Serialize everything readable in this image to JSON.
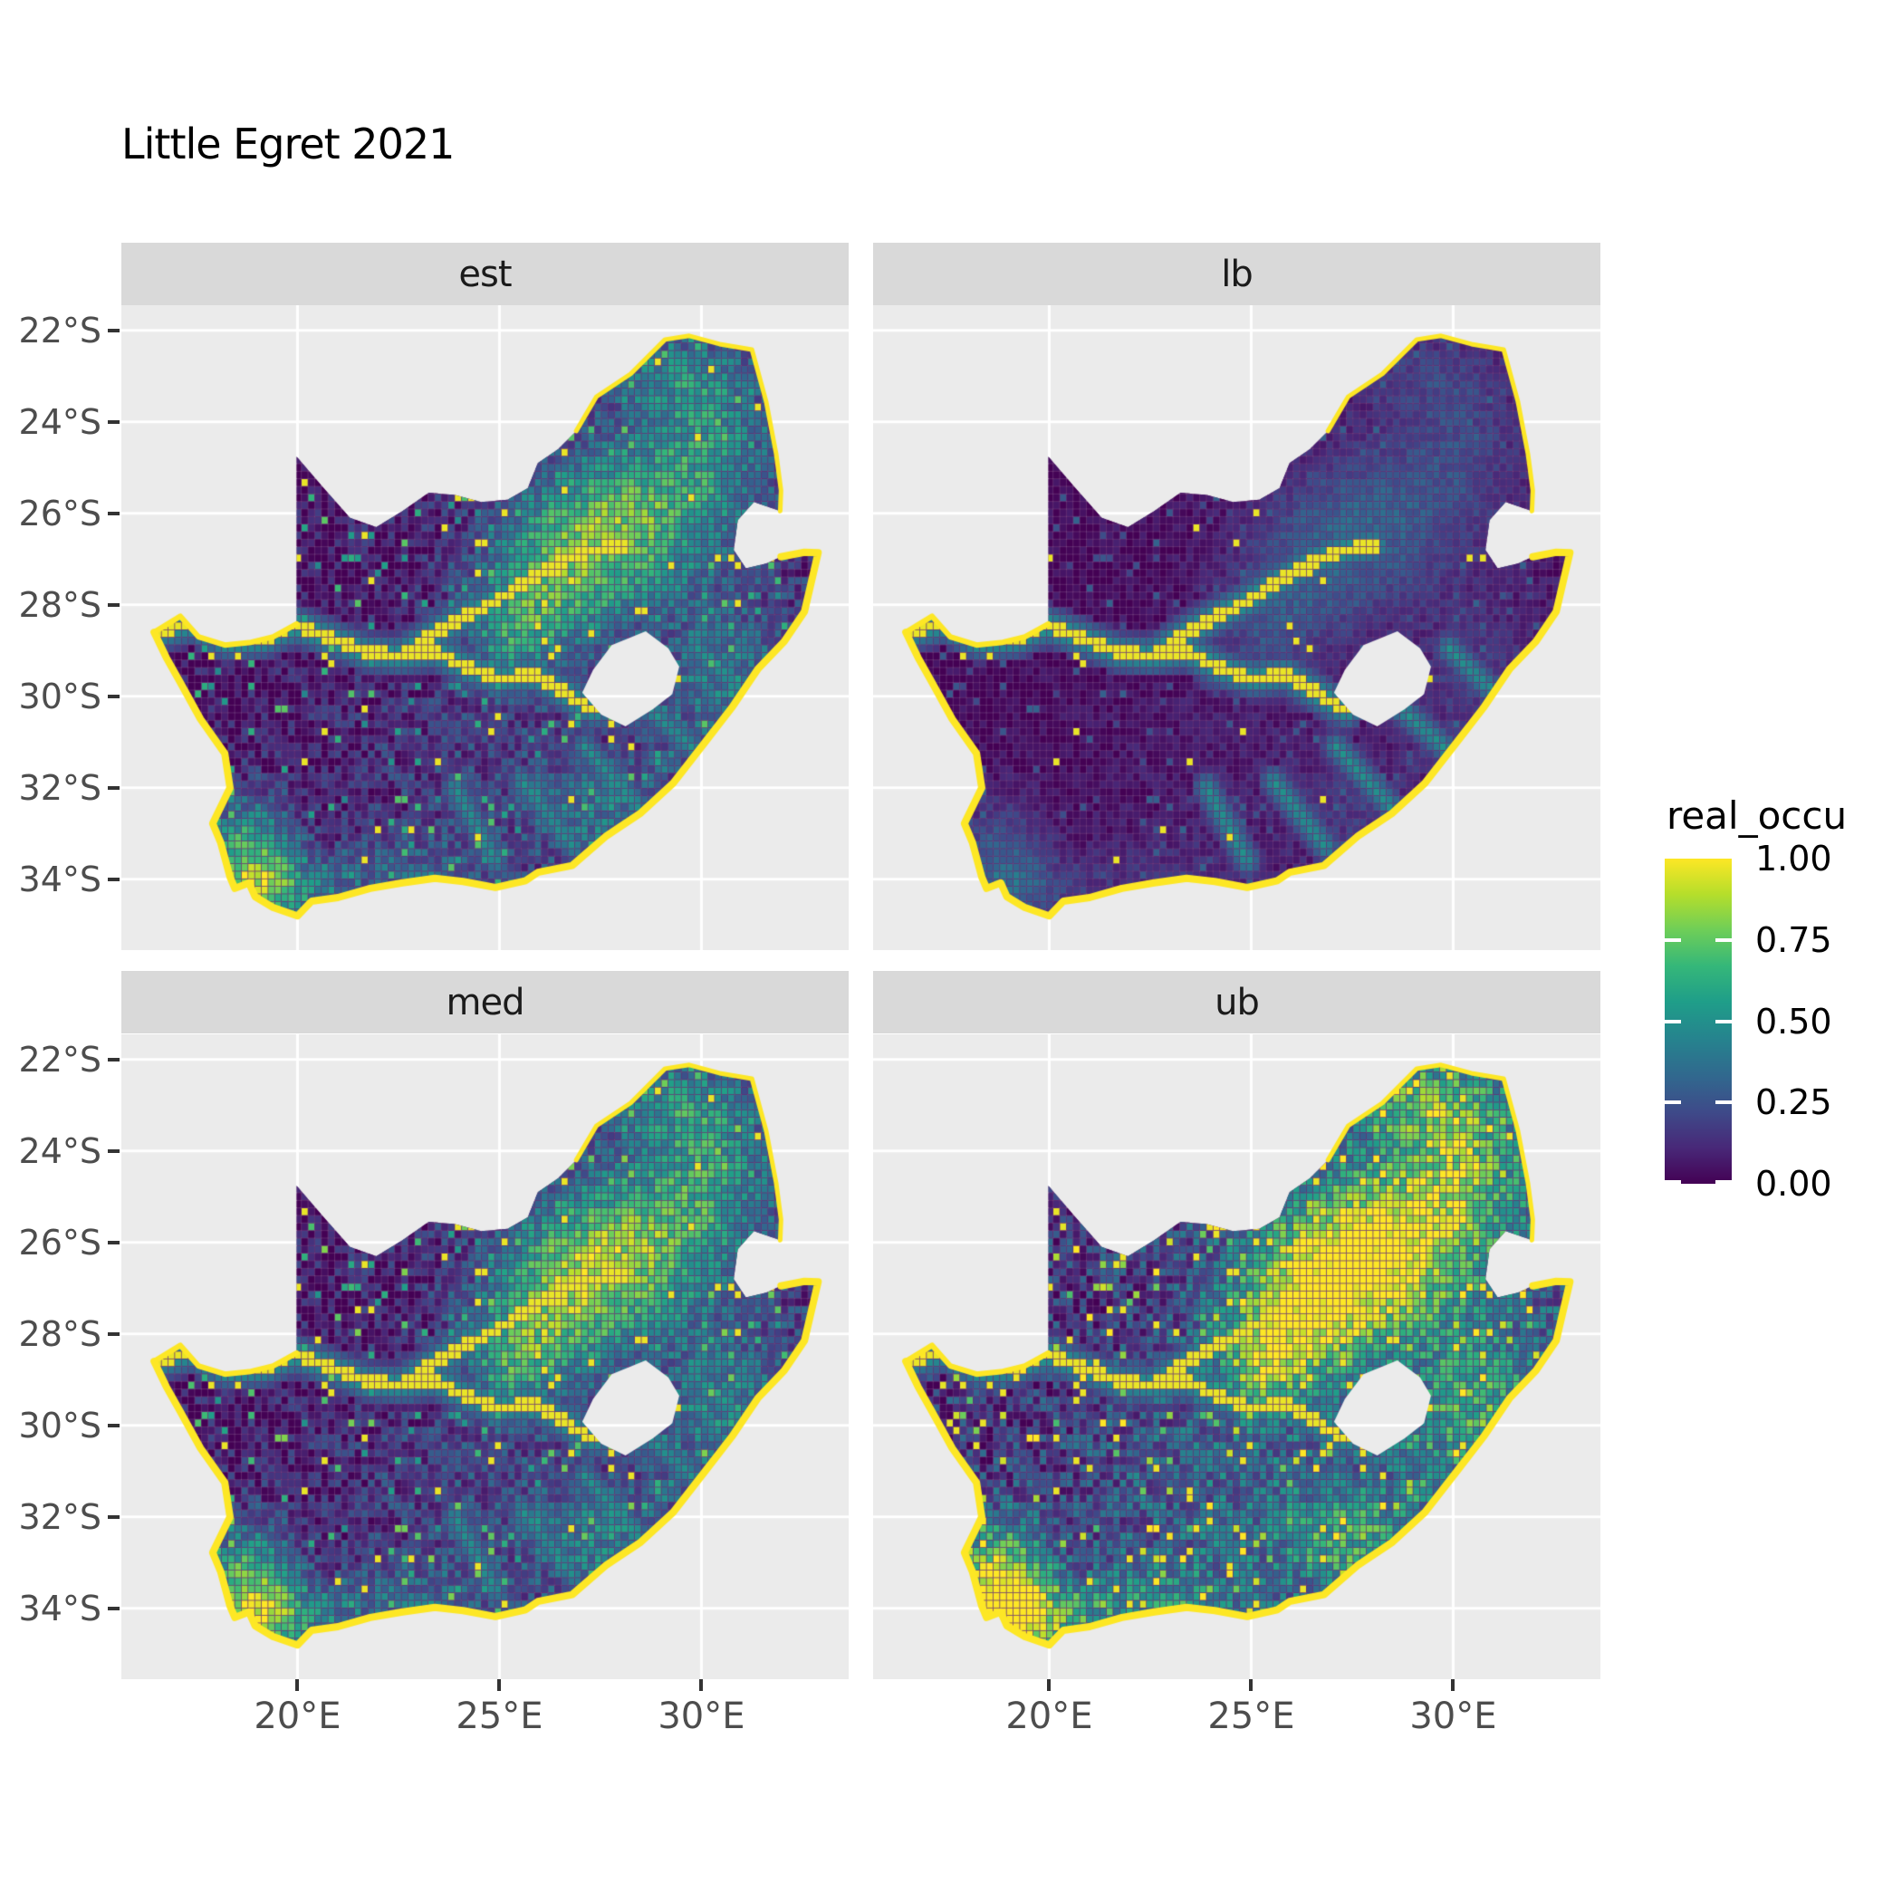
{
  "title": "Little Egret 2021",
  "facets": [
    {
      "id": "est",
      "label": "est",
      "k": 1.0,
      "c": 0.0,
      "salt": 0.986
    },
    {
      "id": "lb",
      "label": "lb",
      "k": 0.42,
      "c": 0.0,
      "salt": 0.993
    },
    {
      "id": "med",
      "label": "med",
      "k": 1.06,
      "c": 0.02,
      "salt": 0.985
    },
    {
      "id": "ub",
      "label": "ub",
      "k": 1.32,
      "c": 0.1,
      "salt": 0.978
    }
  ],
  "axes": {
    "x_tick_labels": [
      "20°E",
      "25°E",
      "30°E"
    ],
    "x_tick_lons": [
      20,
      25,
      30
    ],
    "y_tick_labels": [
      "22°S",
      "24°S",
      "26°S",
      "28°S",
      "30°S",
      "32°S",
      "34°S"
    ],
    "y_tick_lats": [
      22,
      24,
      26,
      28,
      30,
      32,
      34
    ]
  },
  "legend": {
    "title": "real_occu",
    "labels": [
      "1.00",
      "0.75",
      "0.50",
      "0.25",
      "0.00"
    ],
    "values": [
      1.0,
      0.75,
      0.5,
      0.25,
      0.0
    ],
    "tick_values": [
      0.75,
      0.5,
      0.25,
      0.0
    ]
  },
  "colors": {
    "panel_bg": "#ebebeb",
    "strip_bg": "#d9d9d9",
    "grid": "#ffffff",
    "tick_text": "#4d4d4d",
    "axis_tick": "#333333",
    "title_text": "#000000",
    "map_low": "#440154",
    "map_high": "#fde725",
    "viridis": [
      [
        0.0,
        "#440154"
      ],
      [
        0.11,
        "#482878"
      ],
      [
        0.22,
        "#3e4a89"
      ],
      [
        0.33,
        "#31688e"
      ],
      [
        0.44,
        "#26828e"
      ],
      [
        0.56,
        "#1f9e89"
      ],
      [
        0.67,
        "#35b779"
      ],
      [
        0.78,
        "#6ece58"
      ],
      [
        0.89,
        "#b5de2b"
      ],
      [
        1.0,
        "#fde725"
      ]
    ]
  },
  "chart_data": {
    "type": "heatmap",
    "subtype": "faceted-raster-map",
    "region": "South Africa",
    "variable": "real_occu",
    "facet_panels": [
      "est",
      "lb",
      "med",
      "ub"
    ],
    "value_domain": [
      0.0,
      1.0
    ],
    "legend_breaks": [
      0.0,
      0.25,
      0.5,
      0.75,
      1.0
    ],
    "lon_range": [
      15.64,
      33.64
    ],
    "lat_range_south": [
      21.45,
      35.55
    ],
    "cell_deg": 0.165,
    "outline": [
      [
        16.45,
        28.6
      ],
      [
        17.1,
        28.25
      ],
      [
        17.55,
        28.7
      ],
      [
        18.2,
        28.88
      ],
      [
        18.85,
        28.82
      ],
      [
        19.4,
        28.7
      ],
      [
        19.98,
        28.42
      ],
      [
        19.98,
        26.6
      ],
      [
        19.98,
        24.76
      ],
      [
        20.65,
        25.45
      ],
      [
        21.3,
        26.1
      ],
      [
        21.95,
        26.3
      ],
      [
        22.6,
        25.95
      ],
      [
        23.25,
        25.55
      ],
      [
        23.9,
        25.6
      ],
      [
        24.55,
        25.75
      ],
      [
        25.2,
        25.7
      ],
      [
        25.7,
        25.45
      ],
      [
        25.95,
        24.9
      ],
      [
        26.45,
        24.6
      ],
      [
        26.9,
        24.2
      ],
      [
        27.4,
        23.45
      ],
      [
        28.25,
        22.95
      ],
      [
        29.1,
        22.2
      ],
      [
        29.7,
        22.12
      ],
      [
        30.45,
        22.3
      ],
      [
        31.25,
        22.42
      ],
      [
        31.6,
        23.55
      ],
      [
        31.85,
        24.7
      ],
      [
        31.97,
        25.5
      ],
      [
        31.95,
        25.95
      ],
      [
        31.3,
        25.75
      ],
      [
        30.9,
        26.15
      ],
      [
        30.8,
        26.8
      ],
      [
        31.1,
        27.2
      ],
      [
        31.6,
        27.1
      ],
      [
        31.97,
        26.95
      ],
      [
        32.55,
        26.85
      ],
      [
        32.89,
        26.86
      ],
      [
        32.55,
        28.15
      ],
      [
        32.05,
        28.8
      ],
      [
        31.4,
        29.4
      ],
      [
        30.75,
        30.25
      ],
      [
        30.05,
        31.05
      ],
      [
        29.3,
        31.9
      ],
      [
        28.5,
        32.55
      ],
      [
        27.65,
        33.05
      ],
      [
        26.8,
        33.7
      ],
      [
        25.95,
        33.85
      ],
      [
        25.65,
        34.03
      ],
      [
        24.9,
        34.18
      ],
      [
        24.1,
        34.05
      ],
      [
        23.4,
        33.98
      ],
      [
        22.6,
        34.08
      ],
      [
        21.8,
        34.2
      ],
      [
        21.0,
        34.4
      ],
      [
        20.35,
        34.48
      ],
      [
        20.0,
        34.8
      ],
      [
        19.4,
        34.62
      ],
      [
        18.95,
        34.38
      ],
      [
        18.8,
        34.08
      ],
      [
        18.45,
        34.2
      ],
      [
        18.33,
        33.95
      ],
      [
        18.1,
        33.2
      ],
      [
        17.9,
        32.78
      ],
      [
        18.33,
        32.0
      ],
      [
        18.2,
        31.25
      ],
      [
        17.6,
        30.5
      ],
      [
        17.1,
        29.7
      ],
      [
        16.75,
        29.15
      ]
    ],
    "yellow_border_segments": [
      [
        0,
        6
      ],
      [
        20,
        30
      ],
      [
        36,
        70
      ]
    ],
    "yellow_border_widths": [
      6,
      5,
      8
    ],
    "lesotho_hole": [
      [
        28.62,
        28.58
      ],
      [
        29.18,
        28.95
      ],
      [
        29.45,
        29.35
      ],
      [
        29.28,
        29.95
      ],
      [
        28.8,
        30.28
      ],
      [
        28.12,
        30.66
      ],
      [
        27.52,
        30.4
      ],
      [
        27.05,
        29.92
      ],
      [
        27.32,
        29.42
      ],
      [
        27.78,
        28.88
      ]
    ],
    "rivers": [
      [
        [
          16.55,
          28.6
        ],
        [
          17.4,
          28.4
        ],
        [
          18.25,
          28.8
        ],
        [
          19.15,
          28.75
        ],
        [
          19.95,
          28.45
        ],
        [
          20.85,
          28.75
        ],
        [
          21.7,
          29.05
        ],
        [
          22.55,
          29.12
        ],
        [
          23.4,
          29.0
        ],
        [
          24.25,
          29.4
        ],
        [
          25.05,
          29.62
        ],
        [
          25.85,
          29.52
        ],
        [
          26.65,
          29.95
        ],
        [
          27.35,
          30.3
        ]
      ],
      [
        [
          22.55,
          29.12
        ],
        [
          23.35,
          28.65
        ],
        [
          24.15,
          28.25
        ],
        [
          24.95,
          27.9
        ],
        [
          25.75,
          27.45
        ],
        [
          26.55,
          27.05
        ],
        [
          27.35,
          26.8
        ],
        [
          28.05,
          26.7
        ]
      ]
    ],
    "streams": [
      [
        [
          27.1,
          31.1
        ],
        [
          28.45,
          32.4
        ]
      ],
      [
        [
          28.55,
          30.15
        ],
        [
          29.95,
          31.25
        ]
      ],
      [
        [
          25.55,
          31.85
        ],
        [
          26.85,
          33.3
        ]
      ],
      [
        [
          29.9,
          28.95
        ],
        [
          31.15,
          30.05
        ]
      ],
      [
        [
          23.9,
          32.0
        ],
        [
          24.9,
          33.6
        ]
      ]
    ],
    "hotspots": [
      [
        27.9,
        26.2,
        1.7,
        1.2,
        0.6
      ],
      [
        26.3,
        27.6,
        1.3,
        1.0,
        0.38
      ],
      [
        25.3,
        28.7,
        0.9,
        0.8,
        0.34
      ],
      [
        30.2,
        24.5,
        1.1,
        1.3,
        0.33
      ],
      [
        29.2,
        23.0,
        1.3,
        0.7,
        0.25
      ],
      [
        18.8,
        33.6,
        0.8,
        1.0,
        0.65
      ],
      [
        19.6,
        34.3,
        1.3,
        0.5,
        0.35
      ],
      [
        30.6,
        29.7,
        1.2,
        1.2,
        0.3
      ],
      [
        27.6,
        32.6,
        1.3,
        0.9,
        0.28
      ],
      [
        24.0,
        31.5,
        2.2,
        1.5,
        0.1
      ],
      [
        22.6,
        33.8,
        1.5,
        0.6,
        0.22
      ]
    ]
  }
}
